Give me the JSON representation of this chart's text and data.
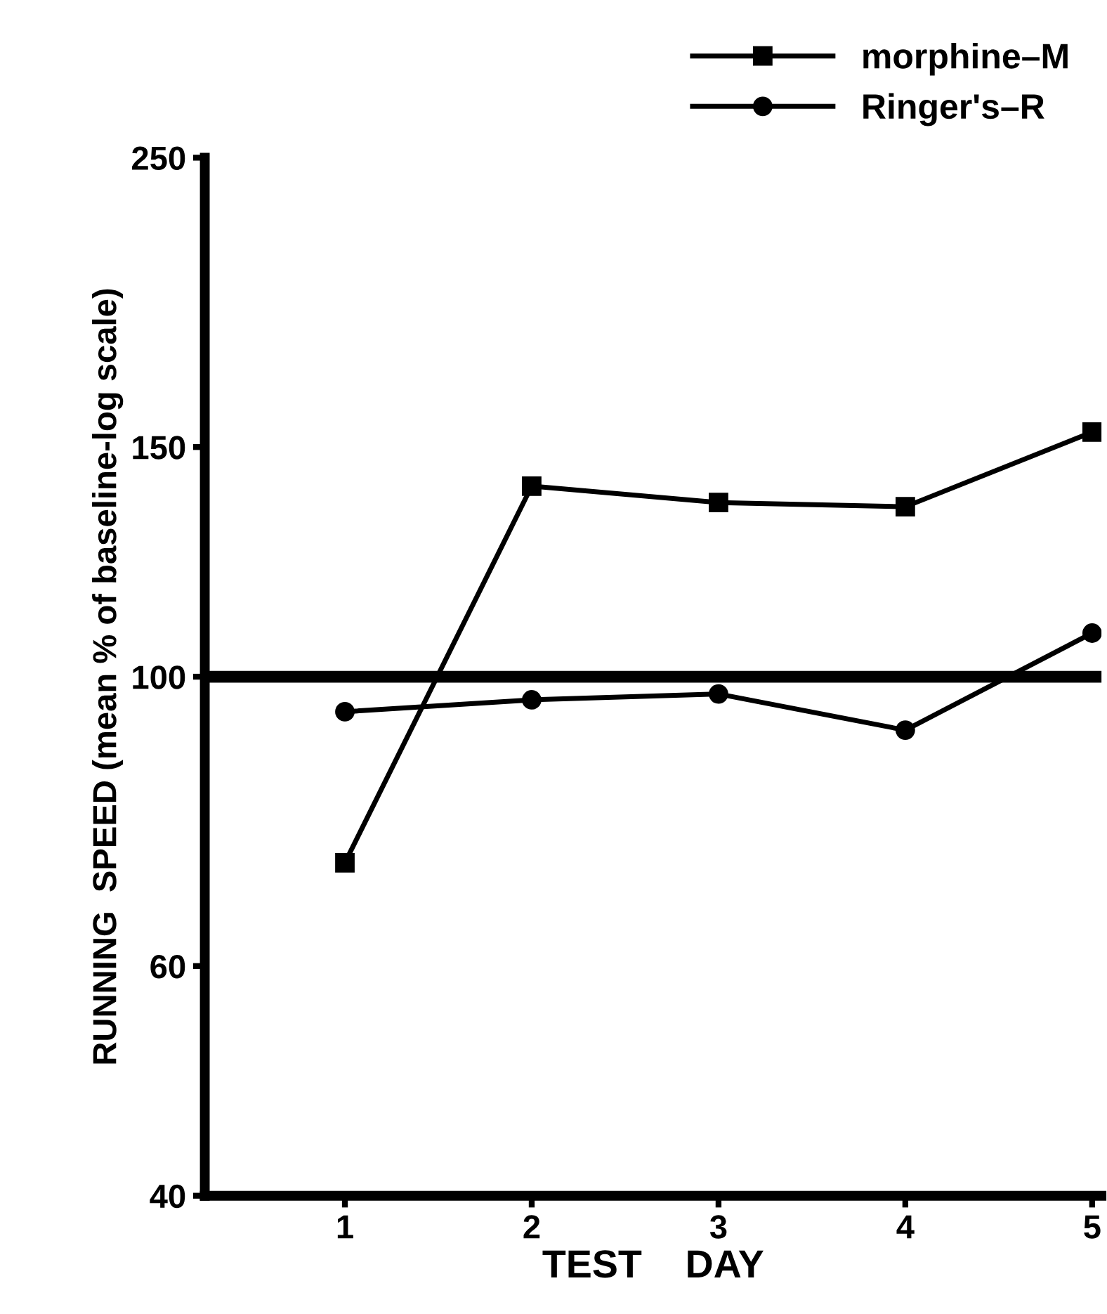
{
  "chart_data": {
    "type": "line",
    "xlabel": "TEST    DAY",
    "ylabel": "RUNNING  SPEED (mean % of baseline-log scale)",
    "x": [
      1,
      2,
      3,
      4,
      5
    ],
    "series": [
      {
        "name": "morphine–M",
        "color": "#000000",
        "values": [
          72,
          140,
          136,
          135,
          154
        ],
        "marker": "square"
      },
      {
        "name": "Ringer's–R",
        "color": "#000000",
        "values": [
          94,
          96,
          97,
          91,
          108
        ],
        "marker": "circle"
      }
    ],
    "log": "y",
    "xlim": [
      0.25,
      5.05
    ],
    "xticks": [
      1,
      2,
      3,
      4,
      5
    ],
    "ylim": [
      40,
      250
    ],
    "yticks": [
      40,
      60,
      100,
      150,
      250
    ],
    "ref_lines": [
      {
        "axis": "y",
        "value": 100,
        "color": "#000000",
        "line_style": "solid"
      }
    ],
    "grid": false,
    "legend": "top right",
    "line_style": "solid"
  }
}
